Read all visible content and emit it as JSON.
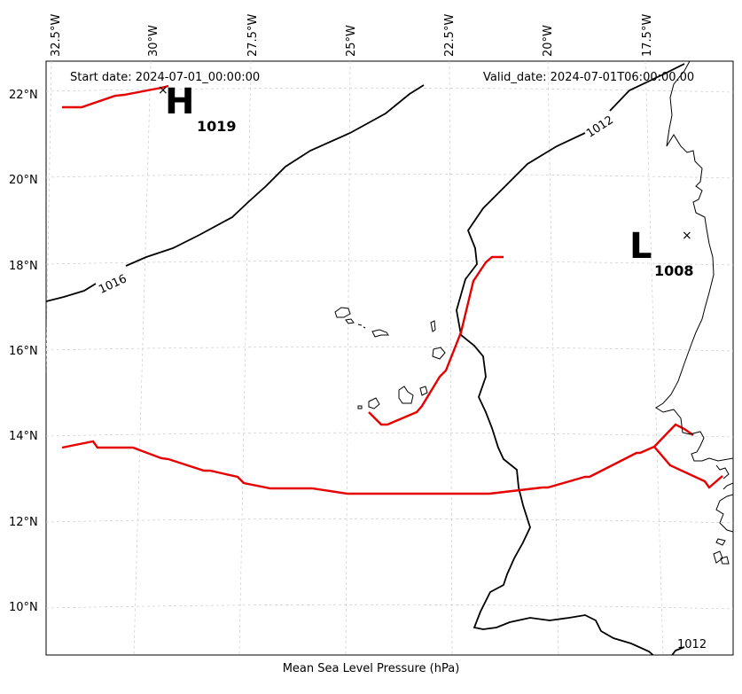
{
  "map": {
    "start_date_label": "Start date: 2024-07-01_00:00:00",
    "valid_date_label": "Valid_date: 2024-07-01T06:00:00.00",
    "caption": "Mean Sea Level Pressure (hPa)",
    "longitude_labels": [
      "32.5°W",
      "30°W",
      "27.5°W",
      "25°W",
      "22.5°W",
      "20°W",
      "17.5°W"
    ],
    "latitude_labels": [
      "22°N",
      "20°N",
      "18°N",
      "16°N",
      "14°N",
      "12°N",
      "10°N"
    ],
    "high": {
      "letter": "H",
      "value": "1019"
    },
    "low": {
      "letter": "L",
      "value": "1008"
    },
    "contour_labels": [
      "1016",
      "1012",
      "1012"
    ],
    "colors": {
      "isobar": "#000000",
      "red_line": "#e60000",
      "grid": "#cccccc",
      "coast": "#000000"
    }
  }
}
